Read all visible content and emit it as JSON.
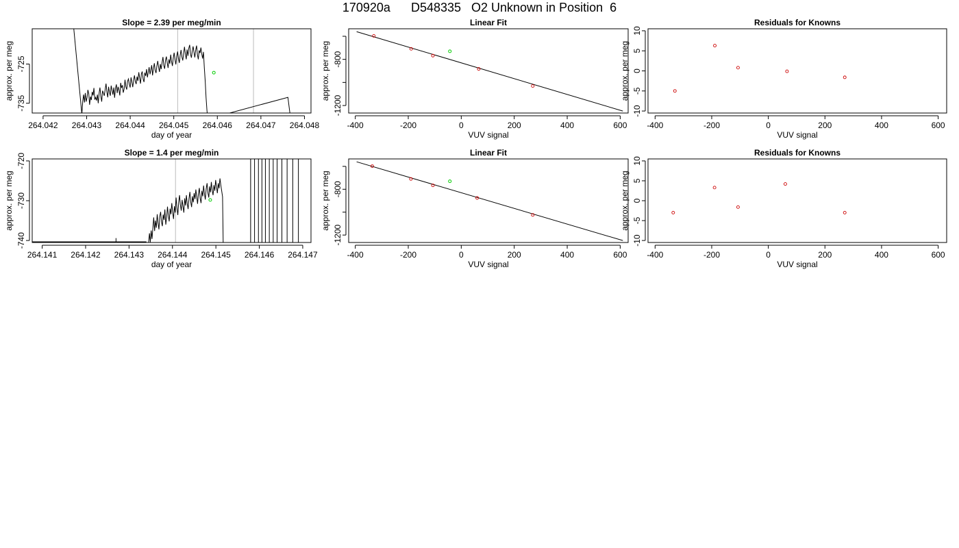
{
  "page_title": "170920a      D548335   O2 Unknown in Position  6",
  "colors": {
    "trace": "#000000",
    "known": "#cc0000",
    "unknown": "#00cc00",
    "marker_line": "#bbbbbb",
    "frame": "#000000"
  },
  "chart_data": [
    {
      "id": "time-series-1",
      "type": "line",
      "title": "Slope =  2.39  per meg/min",
      "xlabel": "day of year",
      "ylabel": "approx. per meg",
      "xlim": [
        264.04175,
        264.04815
      ],
      "ylim": [
        -737.5,
        -716
      ],
      "xticks": [
        264.042,
        264.043,
        264.044,
        264.045,
        264.046,
        264.047,
        264.048
      ],
      "xtick_labels": [
        "264.042",
        "264.043",
        "264.044",
        "264.045",
        "264.046",
        "264.047",
        "264.048"
      ],
      "yticks": [
        -735,
        -725
      ],
      "ytick_labels": [
        "-735",
        "-725"
      ],
      "vlines": [
        264.04509,
        264.04683
      ],
      "x_start": 264.04289,
      "x_step": 1.98e-05,
      "series": [
        {
          "values": [
            -737.8,
            -734.5,
            -732.8,
            -734.8,
            -732.4,
            -734.6,
            -733.5,
            -731.6,
            -732.6,
            -735.4,
            -733.3,
            -734.2,
            -732.1,
            -733.0,
            -731.1,
            -734.1,
            -733.5,
            -734.3,
            -732.8,
            -735.0,
            -732.4,
            -731.0,
            -733.2,
            -734.6,
            -731.8,
            -732.4,
            -733.1,
            -731.5,
            -730.0,
            -732.1,
            -733.5,
            -730.8,
            -732.2,
            -733.1,
            -730.5,
            -731.7,
            -732.8,
            -731.0,
            -733.6,
            -731.2,
            -730.2,
            -732.4,
            -730.8,
            -731.6,
            -733.0,
            -729.8,
            -731.1,
            -730.4,
            -732.3,
            -731.4,
            -729.0,
            -730.8,
            -731.5,
            -729.4,
            -728.8,
            -730.2,
            -731.0,
            -728.4,
            -729.6,
            -730.9,
            -729.2,
            -727.9,
            -729.5,
            -730.1,
            -728.2,
            -729.3,
            -727.1,
            -728.6,
            -730.0,
            -727.5,
            -726.9,
            -728.8,
            -729.6,
            -727.2,
            -728.0,
            -726.3,
            -728.4,
            -727.0,
            -725.8,
            -727.6,
            -726.5,
            -725.3,
            -727.9,
            -726.1,
            -724.8,
            -726.6,
            -727.3,
            -725.5,
            -724.2,
            -725.9,
            -727.0,
            -725.0,
            -726.3,
            -724.6,
            -723.2,
            -725.4,
            -726.2,
            -724.0,
            -723.1,
            -724.8,
            -726.0,
            -723.8,
            -724.9,
            -722.6,
            -724.3,
            -725.5,
            -723.4,
            -722.1,
            -723.9,
            -725.1,
            -723.0,
            -721.8,
            -723.6,
            -724.7,
            -722.8,
            -721.4,
            -723.2,
            -724.1,
            -722.3,
            -720.6,
            -722.4,
            -723.8,
            -721.3,
            -722.9,
            -721.0,
            -720.1,
            -722.5,
            -723.4,
            -721.7,
            -720.5,
            -722.0,
            -723.3,
            -721.4,
            -720.3,
            -722.6,
            -723.8,
            -721.5,
            -722.2,
            -720.8,
            -722.4,
            -723.6,
            -721.9,
            -726.0,
            -729.4,
            -733.5,
            -736.8,
            -739.0
          ]
        }
      ],
      "leading_drop": {
        "x": [
          264.04268,
          264.04289
        ],
        "y": [
          -713.0,
          -737.8
        ]
      },
      "trailing_drop": {
        "x": [
          264.04762,
          264.0477
        ],
        "y": [
          -733.5,
          -740.5
        ]
      },
      "highlight_point": {
        "x": 264.04592,
        "y": -727.2
      }
    },
    {
      "id": "linear-fit-1",
      "type": "scatter",
      "title": "Linear Fit",
      "xlabel": "VUV signal",
      "ylabel": "approx. per meg",
      "xlim": [
        -425,
        630
      ],
      "ylim": [
        -1265,
        -535
      ],
      "xticks": [
        -400,
        -200,
        0,
        200,
        400,
        600
      ],
      "xtick_labels": [
        "-400",
        "-200",
        "0",
        "200",
        "400",
        "600"
      ],
      "yticks": [
        -1200,
        -1000,
        -800,
        -600
      ],
      "ytick_labels": [
        "-1200",
        "",
        "-800",
        ""
      ],
      "fit_line": {
        "x": [
          -395,
          610
        ],
        "y": [
          -560,
          -1248
        ]
      },
      "knowns": {
        "x": [
          -330,
          -189,
          -107,
          66,
          270
        ],
        "y": [
          -597,
          -709,
          -768,
          -883,
          -1031
        ]
      },
      "unknown": {
        "x": [
          -43,
          -730
        ]
      }
    },
    {
      "id": "residuals-1",
      "type": "scatter",
      "title": "Residuals for Knowns",
      "xlabel": "VUV signal",
      "ylabel": "approx. per meg",
      "xlim": [
        -425,
        630
      ],
      "ylim": [
        -10.5,
        10.5
      ],
      "xticks": [
        -400,
        -200,
        0,
        200,
        400,
        600
      ],
      "xtick_labels": [
        "-400",
        "-200",
        "0",
        "200",
        "400",
        "600"
      ],
      "yticks": [
        -10,
        -5,
        0,
        5,
        10
      ],
      "ytick_labels": [
        "-10",
        "-5",
        "0",
        "5",
        "10"
      ],
      "knowns": {
        "x": [
          -330,
          -189,
          -107,
          66,
          270
        ],
        "y": [
          -5.0,
          6.3,
          0.8,
          -0.1,
          -1.6
        ]
      }
    },
    {
      "id": "time-series-2",
      "type": "line",
      "title": "Slope =  1.4  per meg/min",
      "xlabel": "day of year",
      "ylabel": "approx. per meg",
      "xlim": [
        264.14077,
        264.14719
      ],
      "ylim": [
        -740.5,
        -719.5
      ],
      "xticks": [
        264.141,
        264.142,
        264.143,
        264.144,
        264.145,
        264.146,
        264.147
      ],
      "xtick_labels": [
        "264.141",
        "264.142",
        "264.143",
        "264.144",
        "264.145",
        "264.146",
        "264.147"
      ],
      "yticks": [
        -740,
        -730,
        -720
      ],
      "ytick_labels": [
        "-740",
        "-730",
        "-720"
      ],
      "vlines": [
        264.14407,
        264.1458
      ],
      "x_start": 264.14345,
      "x_step": 1.98e-05,
      "series": [
        {
          "values": [
            -740.6,
            -738.2,
            -740.4,
            -737.5,
            -739.6,
            -736.8,
            -734.2,
            -737.6,
            -735.0,
            -736.8,
            -733.4,
            -735.6,
            -737.2,
            -734.0,
            -732.8,
            -735.3,
            -736.4,
            -733.5,
            -734.8,
            -732.2,
            -736.0,
            -734.1,
            -731.5,
            -733.8,
            -735.2,
            -732.0,
            -733.4,
            -730.6,
            -732.8,
            -734.6,
            -731.4,
            -733.0,
            -729.2,
            -731.8,
            -733.6,
            -730.5,
            -728.6,
            -731.0,
            -732.5,
            -729.8,
            -731.4,
            -733.0,
            -729.4,
            -731.2,
            -728.6,
            -730.8,
            -732.1,
            -729.5,
            -727.8,
            -730.3,
            -731.6,
            -728.9,
            -730.4,
            -728.1,
            -729.6,
            -727.2,
            -729.0,
            -730.8,
            -728.2,
            -726.8,
            -729.4,
            -730.6,
            -727.5,
            -728.9,
            -726.2,
            -728.3,
            -729.7,
            -727.0,
            -725.6,
            -728.0,
            -729.2,
            -726.4,
            -727.9,
            -725.3,
            -727.4,
            -728.6,
            -726.1,
            -727.5,
            -724.8,
            -726.5,
            -728.1,
            -725.6,
            -726.9,
            -724.4,
            -726.0,
            -727.5,
            -729.0,
            -744.0
          ]
        }
      ],
      "flat_segment": {
        "x": [
          264.14077,
          264.1434
        ],
        "y": [
          -740.5,
          -740.5
        ]
      },
      "spike": {
        "x": 264.1427,
        "y": [
          -740.5,
          -739.4
        ]
      },
      "noise_vlines": [
        264.1458,
        264.14589,
        264.14598,
        264.14606,
        264.14614,
        264.14623,
        264.14632,
        264.14641,
        264.14652,
        264.14664,
        264.14677,
        264.1469
      ],
      "highlight_point": {
        "x": 264.14487,
        "y": -729.8
      }
    },
    {
      "id": "linear-fit-2",
      "type": "scatter",
      "title": "Linear Fit",
      "xlabel": "VUV signal",
      "ylabel": "approx. per meg",
      "xlim": [
        -425,
        630
      ],
      "ylim": [
        -1265,
        -535
      ],
      "xticks": [
        -400,
        -200,
        0,
        200,
        400,
        600
      ],
      "xtick_labels": [
        "-400",
        "-200",
        "0",
        "200",
        "400",
        "600"
      ],
      "yticks": [
        -1200,
        -1000,
        -800,
        -600
      ],
      "ytick_labels": [
        "-1200",
        "",
        "-800",
        ""
      ],
      "fit_line": {
        "x": [
          -395,
          610
        ],
        "y": [
          -560,
          -1248
        ]
      },
      "knowns": {
        "x": [
          -336,
          -190,
          -107,
          60,
          270
        ],
        "y": [
          -598,
          -710,
          -766,
          -876,
          -1024
        ]
      },
      "unknown": {
        "x": [
          -43,
          -730
        ]
      }
    },
    {
      "id": "residuals-2",
      "type": "scatter",
      "title": "Residuals for Knowns",
      "xlabel": "VUV signal",
      "ylabel": "approx. per meg",
      "xlim": [
        -425,
        630
      ],
      "ylim": [
        -10.5,
        10.5
      ],
      "xticks": [
        -400,
        -200,
        0,
        200,
        400,
        600
      ],
      "xtick_labels": [
        "-400",
        "-200",
        "0",
        "200",
        "400",
        "600"
      ],
      "yticks": [
        -10,
        -5,
        0,
        5,
        10
      ],
      "ytick_labels": [
        "-10",
        "-5",
        "0",
        "5",
        "10"
      ],
      "knowns": {
        "x": [
          -336,
          -190,
          -107,
          60,
          270
        ],
        "y": [
          -3.0,
          3.3,
          -1.6,
          4.2,
          -3.0
        ]
      }
    }
  ]
}
